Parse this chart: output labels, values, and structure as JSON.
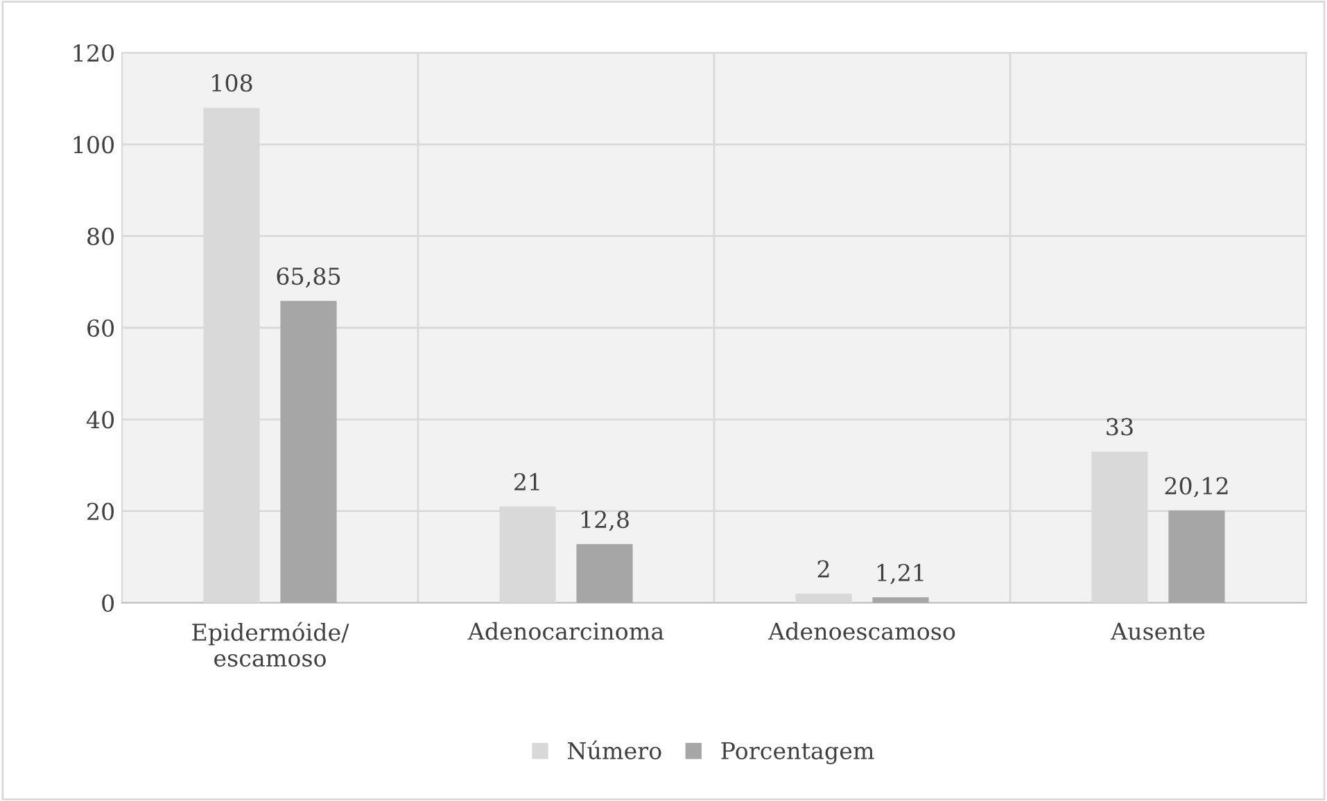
{
  "chart_data": {
    "type": "bar",
    "categories": [
      "Epidermóide/\nescamoso",
      "Adenocarcinoma",
      "Adenoescamoso",
      "Ausente"
    ],
    "series": [
      {
        "name": "Número",
        "color": "#d9d9d9",
        "values": [
          108,
          21,
          2,
          33
        ]
      },
      {
        "name": "Porcentagem",
        "color": "#a6a6a6",
        "values": [
          65.85,
          12.8,
          1.21,
          20.12
        ]
      }
    ],
    "value_labels": [
      [
        "108",
        "21",
        "2",
        "33"
      ],
      [
        "65,85",
        "12,8",
        "1,21",
        "20,12"
      ]
    ],
    "ylim": [
      0,
      120
    ],
    "yticks": [
      0,
      20,
      40,
      60,
      80,
      100,
      120
    ],
    "grid": true,
    "legend": "bottom"
  }
}
